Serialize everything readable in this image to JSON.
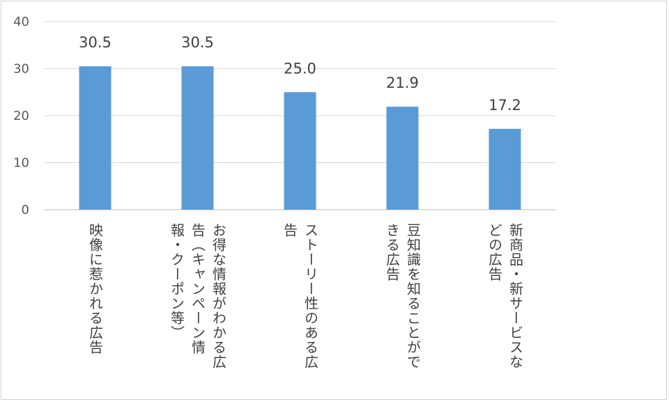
{
  "chart_data": {
    "type": "bar",
    "categories": [
      [
        "映像に惹かれる広告"
      ],
      [
        "お得な情報がわかる広",
        "告（キャンペーン情",
        "報・クーポン等）"
      ],
      [
        "ストーリー性のある広",
        "告"
      ],
      [
        "豆知識を知ることがで",
        "きる広告"
      ],
      [
        "新商品・新サービスな",
        "どの広告"
      ]
    ],
    "values": [
      30.5,
      30.5,
      25.0,
      21.9,
      17.2
    ],
    "value_labels": [
      "30.5",
      "30.5",
      "25.0",
      "21.9",
      "17.2"
    ],
    "title": "",
    "xlabel": "",
    "ylabel": "",
    "ylim": [
      0,
      40
    ],
    "yticks": [
      "0",
      "10",
      "20",
      "30",
      "40"
    ],
    "grid": true,
    "legend": "none",
    "colors": {
      "bar": "#5b9bd5",
      "grid": "#d9d9d9",
      "axis": "#bfbfbf"
    }
  }
}
